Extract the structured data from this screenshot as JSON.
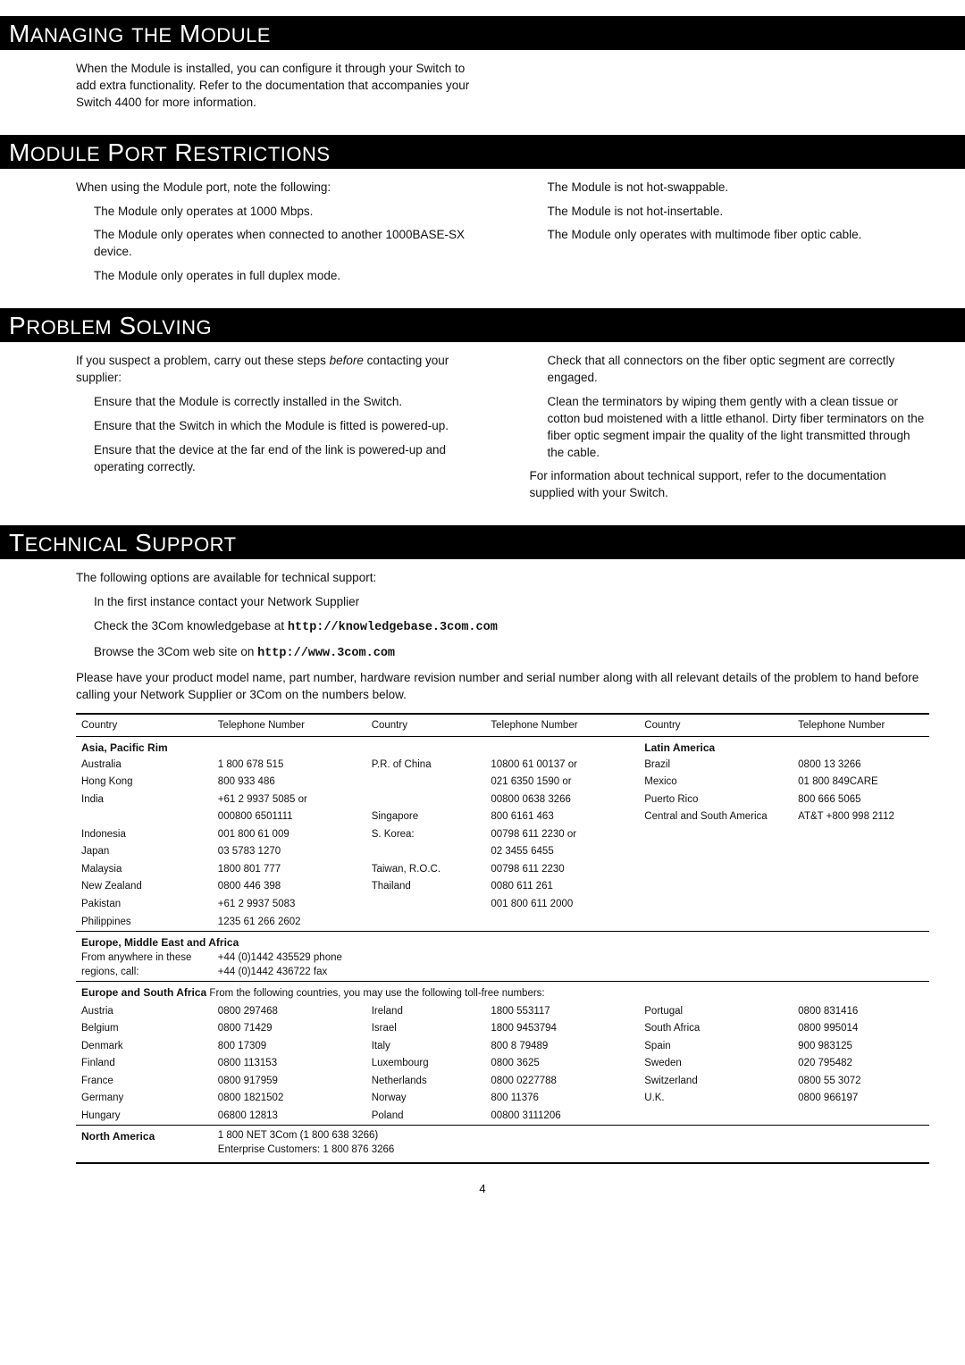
{
  "sections": {
    "managing": {
      "title_parts": [
        "M",
        "ANAGING",
        " ",
        "THE",
        " M",
        "ODULE"
      ],
      "body": "When the Module is installed, you can configure it through your Switch to add extra functionality. Refer to the documentation that accompanies your Switch 4400 for more information."
    },
    "restrictions": {
      "title_parts": [
        "M",
        "ODULE",
        " P",
        "ORT",
        " R",
        "ESTRICTIONS"
      ],
      "intro": "When using the Module port, note the following:",
      "left_items": [
        "The Module only operates at 1000 Mbps.",
        "The Module only operates when connected to another 1000BASE-SX device.",
        "The Module only operates in full duplex mode."
      ],
      "right_items": [
        "The Module is not hot-swappable.",
        "The Module is not hot-insertable.",
        "The Module only operates with multimode fiber optic cable."
      ]
    },
    "problem": {
      "title_parts": [
        "P",
        "ROBLEM",
        " S",
        "OLVING"
      ],
      "intro_pre": "If you suspect a problem, carry out these steps ",
      "intro_em": "before",
      "intro_post": " contacting your supplier:",
      "left_items": [
        "Ensure that the Module is correctly installed in the Switch.",
        "Ensure that the Switch in which the Module is fitted is powered-up.",
        "Ensure that the device at the far end of the link is powered-up and operating correctly."
      ],
      "right_items": [
        "Check that all connectors on the fiber optic segment are correctly engaged.",
        "Clean the terminators by wiping them gently with a clean tissue or cotton bud moistened with a little ethanol. Dirty fiber terminators on the fiber optic segment impair the quality of the light transmitted through the cable."
      ],
      "right_outro": "For information about technical support, refer to the documentation supplied with your Switch."
    },
    "tech": {
      "title_parts": [
        "T",
        "ECHNICAL",
        " S",
        "UPPORT"
      ],
      "intro": "The following options are available for technical support:",
      "items": [
        {
          "pre": "In the first instance contact your Network Supplier",
          "mono": ""
        },
        {
          "pre": "Check the 3Com knowledgebase at ",
          "mono": "http://knowledgebase.3com.com"
        },
        {
          "pre": "Browse the 3Com web site on ",
          "mono": "http://www.3com.com"
        }
      ],
      "note": "Please have your product model name, part number, hardware revision number and serial number along with all relevant details of the problem to hand before calling your Network Supplier or 3Com on the numbers below.",
      "table": {
        "headers": [
          "Country",
          "Telephone Number",
          "Country",
          "Telephone Number",
          "Country",
          "Telephone Number"
        ],
        "region_asia": "Asia, Pacific Rim",
        "region_latin": "Latin America",
        "asia_rows": [
          [
            "Australia",
            "1 800 678 515",
            "P.R. of China",
            "10800 61 00137 or",
            "Brazil",
            "0800 13 3266"
          ],
          [
            "Hong Kong",
            "800 933 486",
            "",
            "021 6350 1590 or",
            "Mexico",
            "01 800 849CARE"
          ],
          [
            "India",
            "+61 2 9937 5085 or",
            "",
            "00800 0638 3266",
            "Puerto Rico",
            "800 666 5065"
          ],
          [
            "",
            "000800 6501111",
            "Singapore",
            "800 6161 463",
            "Central and South America",
            "AT&T +800 998 2112"
          ],
          [
            "Indonesia",
            "001 800 61 009",
            "S. Korea:",
            "00798 611 2230 or",
            "",
            ""
          ],
          [
            "Japan",
            "03 5783 1270",
            "",
            "02 3455 6455",
            "",
            ""
          ],
          [
            "Malaysia",
            "1800 801 777",
            "Taiwan, R.O.C.",
            "00798 611 2230",
            "",
            ""
          ],
          [
            "New Zealand",
            "0800 446 398",
            "Thailand",
            "0080 611 261",
            "",
            ""
          ],
          [
            "Pakistan",
            "+61 2 9937 5083",
            "",
            "001 800 611 2000",
            "",
            ""
          ],
          [
            "Philippines",
            "1235 61 266 2602",
            "",
            "",
            "",
            ""
          ]
        ],
        "region_eme": "Europe, Middle East and Africa",
        "eme_left": "From anywhere in these regions, call:",
        "eme_right": "+44 (0)1442 435529 phone\n+44 (0)1442 436722 fax",
        "esa_label": "Europe and South Africa",
        "esa_text": "  From the following countries, you may use the following toll-free numbers:",
        "esa_rows": [
          [
            "Austria",
            "0800 297468",
            "Ireland",
            "1800 553117",
            "Portugal",
            "0800 831416"
          ],
          [
            "Belgium",
            "0800 71429",
            "Israel",
            "1800 9453794",
            "South Africa",
            "0800 995014"
          ],
          [
            "Denmark",
            "800 17309",
            "Italy",
            "800 8 79489",
            "Spain",
            "900 983125"
          ],
          [
            "Finland",
            "0800 113153",
            "Luxembourg",
            "0800 3625",
            "Sweden",
            "020 795482"
          ],
          [
            "France",
            "0800 917959",
            "Netherlands",
            "0800 0227788",
            "Switzerland",
            "0800 55 3072"
          ],
          [
            "Germany",
            "0800 1821502",
            "Norway",
            "800 11376",
            "U.K.",
            "0800 966197"
          ],
          [
            "Hungary",
            "06800 12813",
            "Poland",
            "00800 3111206",
            "",
            ""
          ]
        ],
        "na_label": "North America",
        "na_text": "1 800 NET 3Com (1 800 638 3266)\nEnterprise Customers: 1 800 876 3266"
      }
    }
  },
  "page_number": "4"
}
